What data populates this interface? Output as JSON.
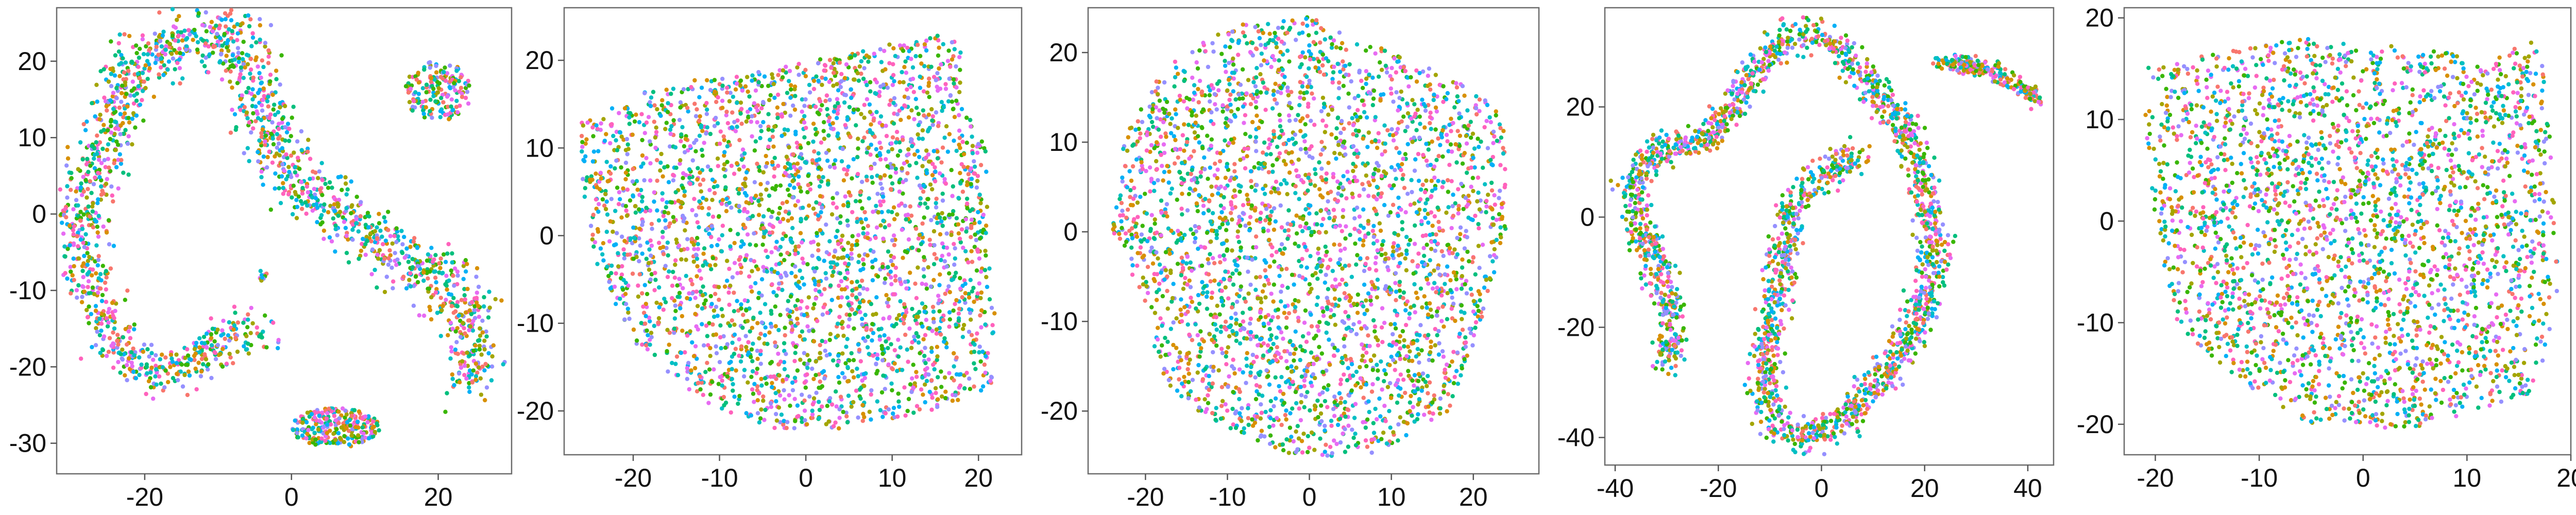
{
  "figure": {
    "palette": [
      "#F8766D",
      "#D89000",
      "#A3A500",
      "#39B600",
      "#00BF7D",
      "#00BFC4",
      "#00B0F6",
      "#9590FF",
      "#E76BF3",
      "#FF62BC"
    ]
  },
  "chart_data": [
    {
      "type": "scatter",
      "xlim": [
        -32,
        30
      ],
      "ylim": [
        -34,
        27
      ],
      "xticks": [
        "-20",
        "0",
        "20"
      ],
      "xtick_values": [
        -20,
        0,
        20
      ],
      "yticks": [
        "-30",
        "-20",
        "-10",
        "0",
        "10",
        "20"
      ],
      "ytick_values": [
        -30,
        -20,
        -10,
        0,
        10,
        20
      ],
      "series": [
        {
          "shape": "polyline",
          "points": [
            [
              -29,
              -1
            ],
            [
              -26,
              8
            ],
            [
              -23,
              16
            ],
            [
              -19,
              21
            ],
            [
              -13,
              23
            ],
            [
              -8,
              23
            ],
            [
              -5,
              19
            ],
            [
              -4,
              13
            ],
            [
              -2,
              8
            ],
            [
              1,
              4
            ],
            [
              6,
              1
            ],
            [
              12,
              -4
            ],
            [
              17,
              -7
            ],
            [
              21,
              -9
            ],
            [
              24,
              -13
            ],
            [
              25,
              -18
            ],
            [
              24,
              -22
            ]
          ],
          "count": 1400,
          "width": 3.2
        },
        {
          "shape": "polyline",
          "points": [
            [
              -29,
              -1
            ],
            [
              -28,
              -8
            ],
            [
              -25,
              -14
            ],
            [
              -22,
              -19
            ],
            [
              -18,
              -21
            ],
            [
              -13,
              -19
            ],
            [
              -8,
              -16
            ],
            [
              -4,
              -15
            ]
          ],
          "count": 480,
          "width": 2.6
        },
        {
          "shape": "ellipse",
          "cx": 20,
          "cy": 16,
          "rx": 4.5,
          "ry": 4,
          "count": 170
        },
        {
          "shape": "ellipse",
          "cx": 6,
          "cy": -28,
          "rx": 6,
          "ry": 2.6,
          "count": 260
        },
        {
          "shape": "ellipse",
          "cx": -4,
          "cy": -8,
          "rx": 0.8,
          "ry": 0.8,
          "count": 10
        }
      ]
    },
    {
      "type": "scatter",
      "xlim": [
        -28,
        25
      ],
      "ylim": [
        -25,
        26
      ],
      "xticks": [
        "-20",
        "-10",
        "0",
        "10",
        "20"
      ],
      "xtick_values": [
        -20,
        -10,
        0,
        10,
        20
      ],
      "yticks": [
        "-20",
        "-10",
        "0",
        "10",
        "20"
      ],
      "ytick_values": [
        -20,
        -10,
        0,
        10,
        20
      ],
      "series": [
        {
          "shape": "polygon",
          "points": [
            [
              -26,
              13
            ],
            [
              -20,
              16
            ],
            [
              -12,
              18
            ],
            [
              -4,
              19
            ],
            [
              6,
              21
            ],
            [
              15,
              23
            ],
            [
              18,
              22
            ],
            [
              18,
              15
            ],
            [
              21,
              10
            ],
            [
              21,
              0
            ],
            [
              22,
              -10
            ],
            [
              22,
              -17
            ],
            [
              15,
              -20
            ],
            [
              5,
              -22
            ],
            [
              -5,
              -22
            ],
            [
              -14,
              -18
            ],
            [
              -20,
              -12
            ],
            [
              -24,
              -4
            ],
            [
              -26,
              5
            ]
          ],
          "count": 3000
        }
      ]
    },
    {
      "type": "scatter",
      "xlim": [
        -27,
        28
      ],
      "ylim": [
        -27,
        25
      ],
      "xticks": [
        "-20",
        "-10",
        "0",
        "10",
        "20"
      ],
      "xtick_values": [
        -20,
        -10,
        0,
        10,
        20
      ],
      "yticks": [
        "-20",
        "-10",
        "0",
        "10",
        "20"
      ],
      "ytick_values": [
        -20,
        -10,
        0,
        10,
        20
      ],
      "series": [
        {
          "shape": "polygon",
          "points": [
            [
              -23,
              10
            ],
            [
              -18,
              18
            ],
            [
              -10,
              23
            ],
            [
              0,
              24
            ],
            [
              10,
              20
            ],
            [
              18,
              17
            ],
            [
              24,
              13
            ],
            [
              24,
              0
            ],
            [
              21,
              -10
            ],
            [
              17,
              -20
            ],
            [
              8,
              -25
            ],
            [
              -2,
              -25
            ],
            [
              -12,
              -21
            ],
            [
              -18,
              -17
            ],
            [
              -20,
              -8
            ],
            [
              -24,
              0
            ]
          ],
          "count": 3000
        }
      ]
    },
    {
      "type": "scatter",
      "xlim": [
        -42,
        45
      ],
      "ylim": [
        -45,
        38
      ],
      "xticks": [
        "-40",
        "-20",
        "0",
        "20",
        "40"
      ],
      "xtick_values": [
        -40,
        -20,
        0,
        20,
        40
      ],
      "yticks": [
        "-40",
        "-20",
        "0",
        "20"
      ],
      "ytick_values": [
        -40,
        -20,
        0,
        20
      ],
      "series": [
        {
          "shape": "polyline",
          "points": [
            [
              -30,
              -27
            ],
            [
              -29,
              -19
            ],
            [
              -31,
              -10
            ],
            [
              -35,
              -2
            ],
            [
              -37,
              6
            ],
            [
              -32,
              12
            ],
            [
              -22,
              14
            ],
            [
              -17,
              20
            ],
            [
              -12,
              28
            ],
            [
              -5,
              33
            ],
            [
              2,
              32
            ],
            [
              7,
              27
            ],
            [
              13,
              20
            ],
            [
              18,
              13
            ],
            [
              20,
              4
            ],
            [
              22,
              -6
            ],
            [
              20,
              -15
            ],
            [
              16,
              -24
            ],
            [
              10,
              -31
            ],
            [
              4,
              -37
            ],
            [
              -3,
              -40
            ],
            [
              -9,
              -37
            ],
            [
              -11,
              -30
            ],
            [
              -10,
              -20
            ],
            [
              -8,
              -10
            ],
            [
              -6,
              0
            ],
            [
              -3,
              5
            ],
            [
              3,
              9
            ],
            [
              8,
              11
            ]
          ],
          "count": 2300,
          "width": 2.6
        },
        {
          "shape": "polyline",
          "points": [
            [
              23,
              28
            ],
            [
              28,
              28
            ],
            [
              34,
              26
            ],
            [
              39,
              23
            ],
            [
              42,
              21
            ]
          ],
          "count": 220,
          "width": 1.4
        }
      ]
    },
    {
      "type": "scatter",
      "xlim": [
        -23,
        20
      ],
      "ylim": [
        -23,
        21
      ],
      "xticks": [
        "-20",
        "-10",
        "0",
        "10",
        "20"
      ],
      "xtick_values": [
        -20,
        -10,
        0,
        10,
        20
      ],
      "yticks": [
        "-20",
        "-10",
        "0",
        "10",
        "20"
      ],
      "ytick_values": [
        -20,
        -10,
        0,
        10,
        20
      ],
      "series": [
        {
          "shape": "polygon",
          "points": [
            [
              -21,
              15
            ],
            [
              -14,
              17
            ],
            [
              -5,
              18
            ],
            [
              5,
              17
            ],
            [
              12,
              16
            ],
            [
              17,
              18
            ],
            [
              18,
              8
            ],
            [
              19,
              -5
            ],
            [
              18,
              -12
            ],
            [
              16,
              -17
            ],
            [
              10,
              -19
            ],
            [
              3,
              -21
            ],
            [
              -5,
              -20
            ],
            [
              -12,
              -16
            ],
            [
              -18,
              -10
            ],
            [
              -20,
              0
            ],
            [
              -21,
              10
            ]
          ],
          "count": 2800
        }
      ]
    }
  ]
}
